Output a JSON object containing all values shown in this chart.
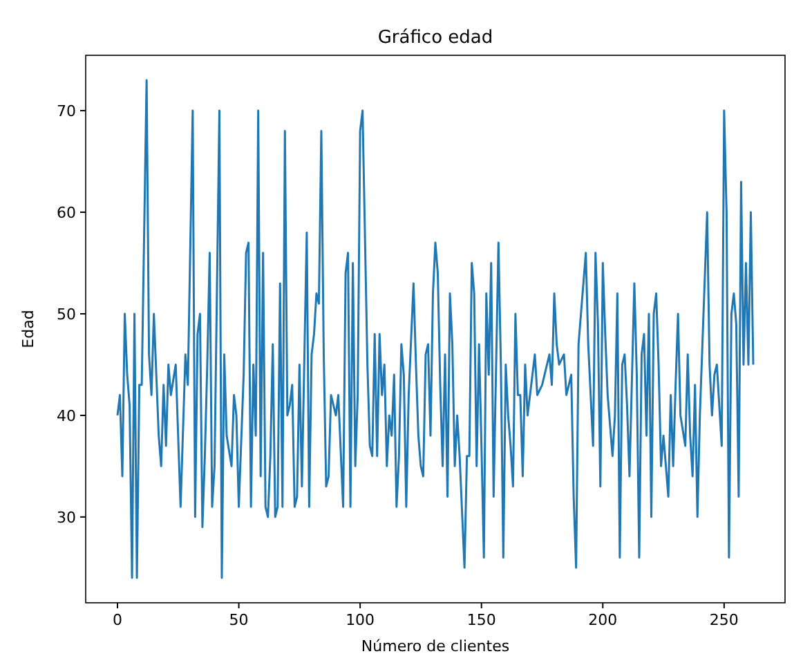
{
  "chart_data": {
    "type": "line",
    "title": "Gráfico edad",
    "xlabel": "Número de clientes",
    "ylabel": "Edad",
    "xlim": [
      -13.1,
      275.1
    ],
    "ylim": [
      21.55,
      75.45
    ],
    "xticks": [
      0,
      50,
      100,
      150,
      200,
      250
    ],
    "yticks": [
      30,
      40,
      50,
      60,
      70
    ],
    "grid": false,
    "series": [
      {
        "color": "#1f77b4",
        "x": [
          0,
          1,
          2,
          3,
          4,
          5,
          6,
          7,
          8,
          9,
          10,
          12,
          13,
          14,
          15,
          16,
          17,
          18,
          19,
          20,
          21,
          22,
          24,
          26,
          28,
          29,
          31,
          32,
          33,
          34,
          35,
          36,
          37,
          38,
          39,
          40,
          42,
          43,
          44,
          45,
          47,
          48,
          49,
          50,
          52,
          53,
          54,
          55,
          56,
          57,
          58,
          59,
          60,
          61,
          62,
          63,
          64,
          65,
          66,
          67,
          68,
          69,
          70,
          71,
          72,
          73,
          74,
          75,
          76,
          78,
          79,
          80,
          81,
          82,
          83,
          84,
          85,
          86,
          87,
          88,
          90,
          91,
          93,
          94,
          95,
          96,
          97,
          98,
          99,
          100,
          101,
          103,
          104,
          105,
          106,
          107,
          108,
          109,
          110,
          111,
          112,
          113,
          114,
          115,
          116,
          117,
          118,
          119,
          120,
          122,
          123,
          124,
          125,
          126,
          127,
          128,
          129,
          130,
          131,
          132,
          133,
          134,
          135,
          136,
          137,
          138,
          139,
          140,
          141,
          143,
          144,
          145,
          146,
          147,
          148,
          149,
          150,
          151,
          152,
          153,
          154,
          155,
          157,
          158,
          159,
          160,
          161,
          162,
          163,
          164,
          165,
          166,
          167,
          168,
          169,
          170,
          172,
          173,
          175,
          176,
          178,
          179,
          180,
          181,
          182,
          184,
          185,
          187,
          188,
          189,
          190,
          193,
          194,
          195,
          196,
          197,
          198,
          199,
          200,
          201,
          202,
          204,
          205,
          206,
          207,
          208,
          209,
          210,
          211,
          213,
          214,
          215,
          216,
          217,
          218,
          219,
          220,
          221,
          222,
          223,
          224,
          225,
          227,
          228,
          229,
          230,
          231,
          232,
          234,
          235,
          236,
          237,
          238,
          239,
          240,
          243,
          244,
          245,
          246,
          247,
          249,
          250,
          251,
          252,
          253,
          254,
          255,
          256,
          257,
          258,
          259,
          260,
          261,
          262
        ],
        "values": [
          40,
          42,
          34,
          50,
          44,
          41,
          24,
          50,
          24,
          43,
          43,
          73,
          46,
          42,
          50,
          44,
          38,
          35,
          43,
          37,
          45,
          42,
          45,
          31,
          46,
          43,
          70,
          30,
          48,
          50,
          29,
          36,
          45,
          56,
          31,
          35,
          70,
          24,
          46,
          38,
          35,
          42,
          40,
          31,
          44,
          56,
          57,
          31,
          45,
          38,
          70,
          34,
          56,
          31,
          30,
          36,
          47,
          30,
          31,
          53,
          31,
          68,
          40,
          41,
          43,
          31,
          32,
          45,
          33,
          58,
          31,
          46,
          48,
          52,
          51,
          68,
          46,
          33,
          34,
          42,
          40,
          42,
          31,
          54,
          56,
          31,
          55,
          35,
          42,
          68,
          70,
          45,
          37,
          36,
          48,
          36,
          48,
          42,
          45,
          35,
          40,
          38,
          44,
          31,
          36,
          47,
          44,
          31,
          42,
          53,
          45,
          38,
          35,
          34,
          46,
          47,
          38,
          52,
          57,
          54,
          43,
          35,
          46,
          32,
          52,
          47,
          35,
          40,
          36,
          25,
          36,
          36,
          55,
          52,
          35,
          47,
          37,
          26,
          52,
          44,
          55,
          32,
          57,
          45,
          26,
          45,
          40,
          37,
          33,
          50,
          42,
          42,
          34,
          45,
          40,
          42,
          46,
          42,
          43,
          44,
          46,
          43,
          52,
          47,
          45,
          46,
          42,
          44,
          32,
          25,
          47,
          56,
          47,
          42,
          37,
          56,
          49,
          33,
          55,
          48,
          42,
          36,
          40,
          52,
          26,
          45,
          46,
          41,
          34,
          53,
          44,
          26,
          46,
          48,
          38,
          50,
          30,
          50,
          52,
          45,
          35,
          38,
          32,
          42,
          35,
          43,
          50,
          40,
          37,
          46,
          38,
          34,
          43,
          30,
          40,
          60,
          45,
          40,
          44,
          45,
          37,
          70,
          60,
          26,
          50,
          52,
          49,
          32,
          63,
          45,
          55,
          45,
          60,
          45
        ]
      }
    ]
  }
}
